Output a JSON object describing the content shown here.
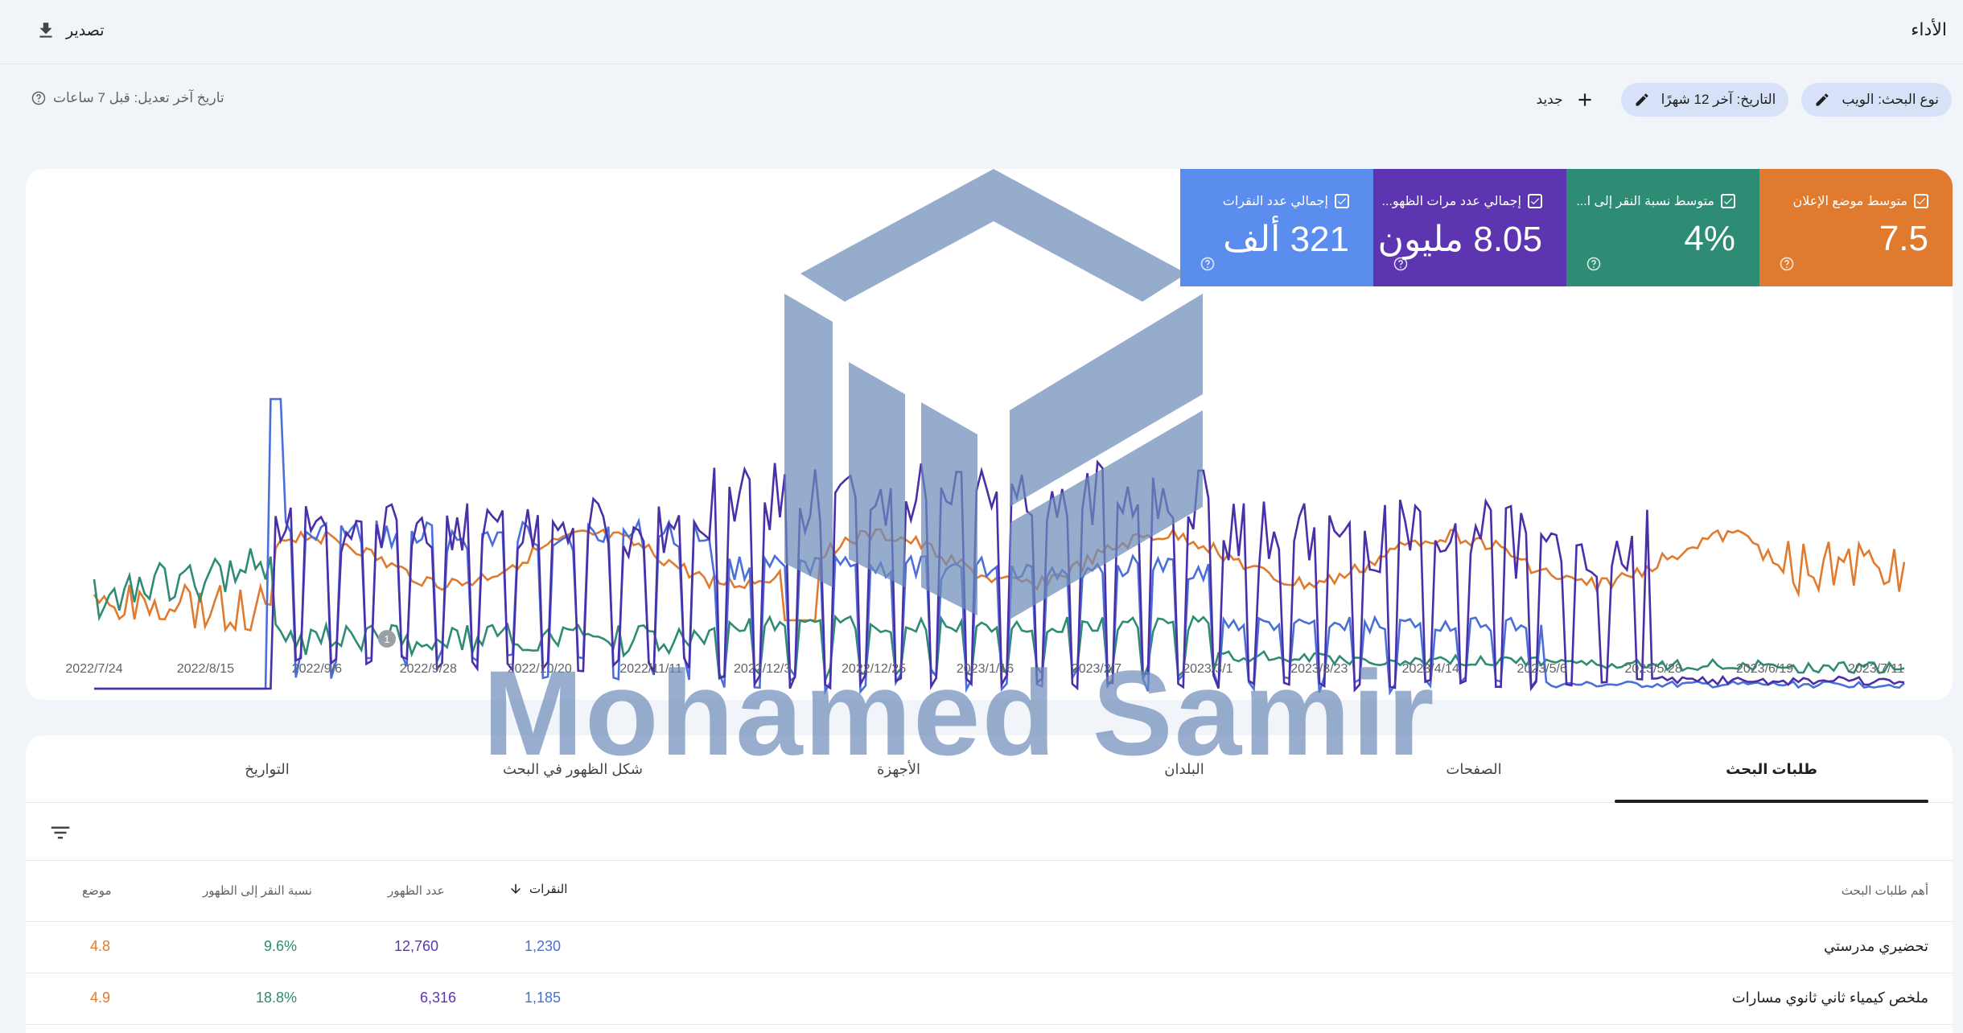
{
  "header": {
    "title": "الأداء",
    "export_label": "تصدير"
  },
  "filters": {
    "search_type": "نوع البحث: الويب",
    "date": "التاريخ: آخر 12 شهرًا",
    "new_label": "جديد",
    "last_updated": "تاريخ آخر تعديل: قبل 7 ساعات"
  },
  "metrics": [
    {
      "label": "إجمالي عدد النقرات",
      "value": "321 ألف",
      "color": "#5b8def"
    },
    {
      "label": "إجمالي عدد مرات الظهو...",
      "value": "8.05 مليون",
      "color": "#5e35b1"
    },
    {
      "label": "متوسط نسبة النقر إلى ا...",
      "value": "4%",
      "color": "#2e8b74"
    },
    {
      "label": "متوسط موضع الإعلان",
      "value": "7.5",
      "color": "#e07a2e"
    }
  ],
  "chart_data": {
    "type": "line",
    "x_ticks": [
      "2022/7/24",
      "2022/8/15",
      "2022/9/6",
      "2022/9/28",
      "2022/10/20",
      "2022/11/11",
      "2022/12/3",
      "2022/12/25",
      "2023/1/16",
      "2023/2/7",
      "2023/3/1",
      "2023/3/23",
      "2023/4/14",
      "2023/5/6",
      "2023/5/28",
      "2023/6/19",
      "2023/7/11"
    ],
    "annotation_marker": "1",
    "series": [
      {
        "color": "#e07a2e"
      },
      {
        "color": "#2e8b74"
      },
      {
        "color": "#4a6fd8"
      },
      {
        "color": "#4a2fa8"
      }
    ]
  },
  "tabs": [
    "طلبات البحث",
    "الصفحات",
    "البلدان",
    "الأجهزة",
    "شكل الظهور في البحث",
    "التواريخ"
  ],
  "table": {
    "columns": {
      "query": "أهم طلبات البحث",
      "clicks": "النقرات",
      "impressions": "عدد الظهور",
      "ctr": "نسبة النقر إلى الظهور",
      "position": "موضع"
    },
    "rows": [
      {
        "query": "تحضيري مدرستي",
        "clicks": "1,230",
        "impressions": "12,760",
        "ctr": "9.6%",
        "position": "4.8"
      },
      {
        "query": "ملخص كيمياء ثاني ثانوي مسارات",
        "clicks": "1,185",
        "impressions": "6,316",
        "ctr": "18.8%",
        "position": "4.9"
      }
    ]
  },
  "watermark": {
    "text": "Mohamed Samir"
  }
}
